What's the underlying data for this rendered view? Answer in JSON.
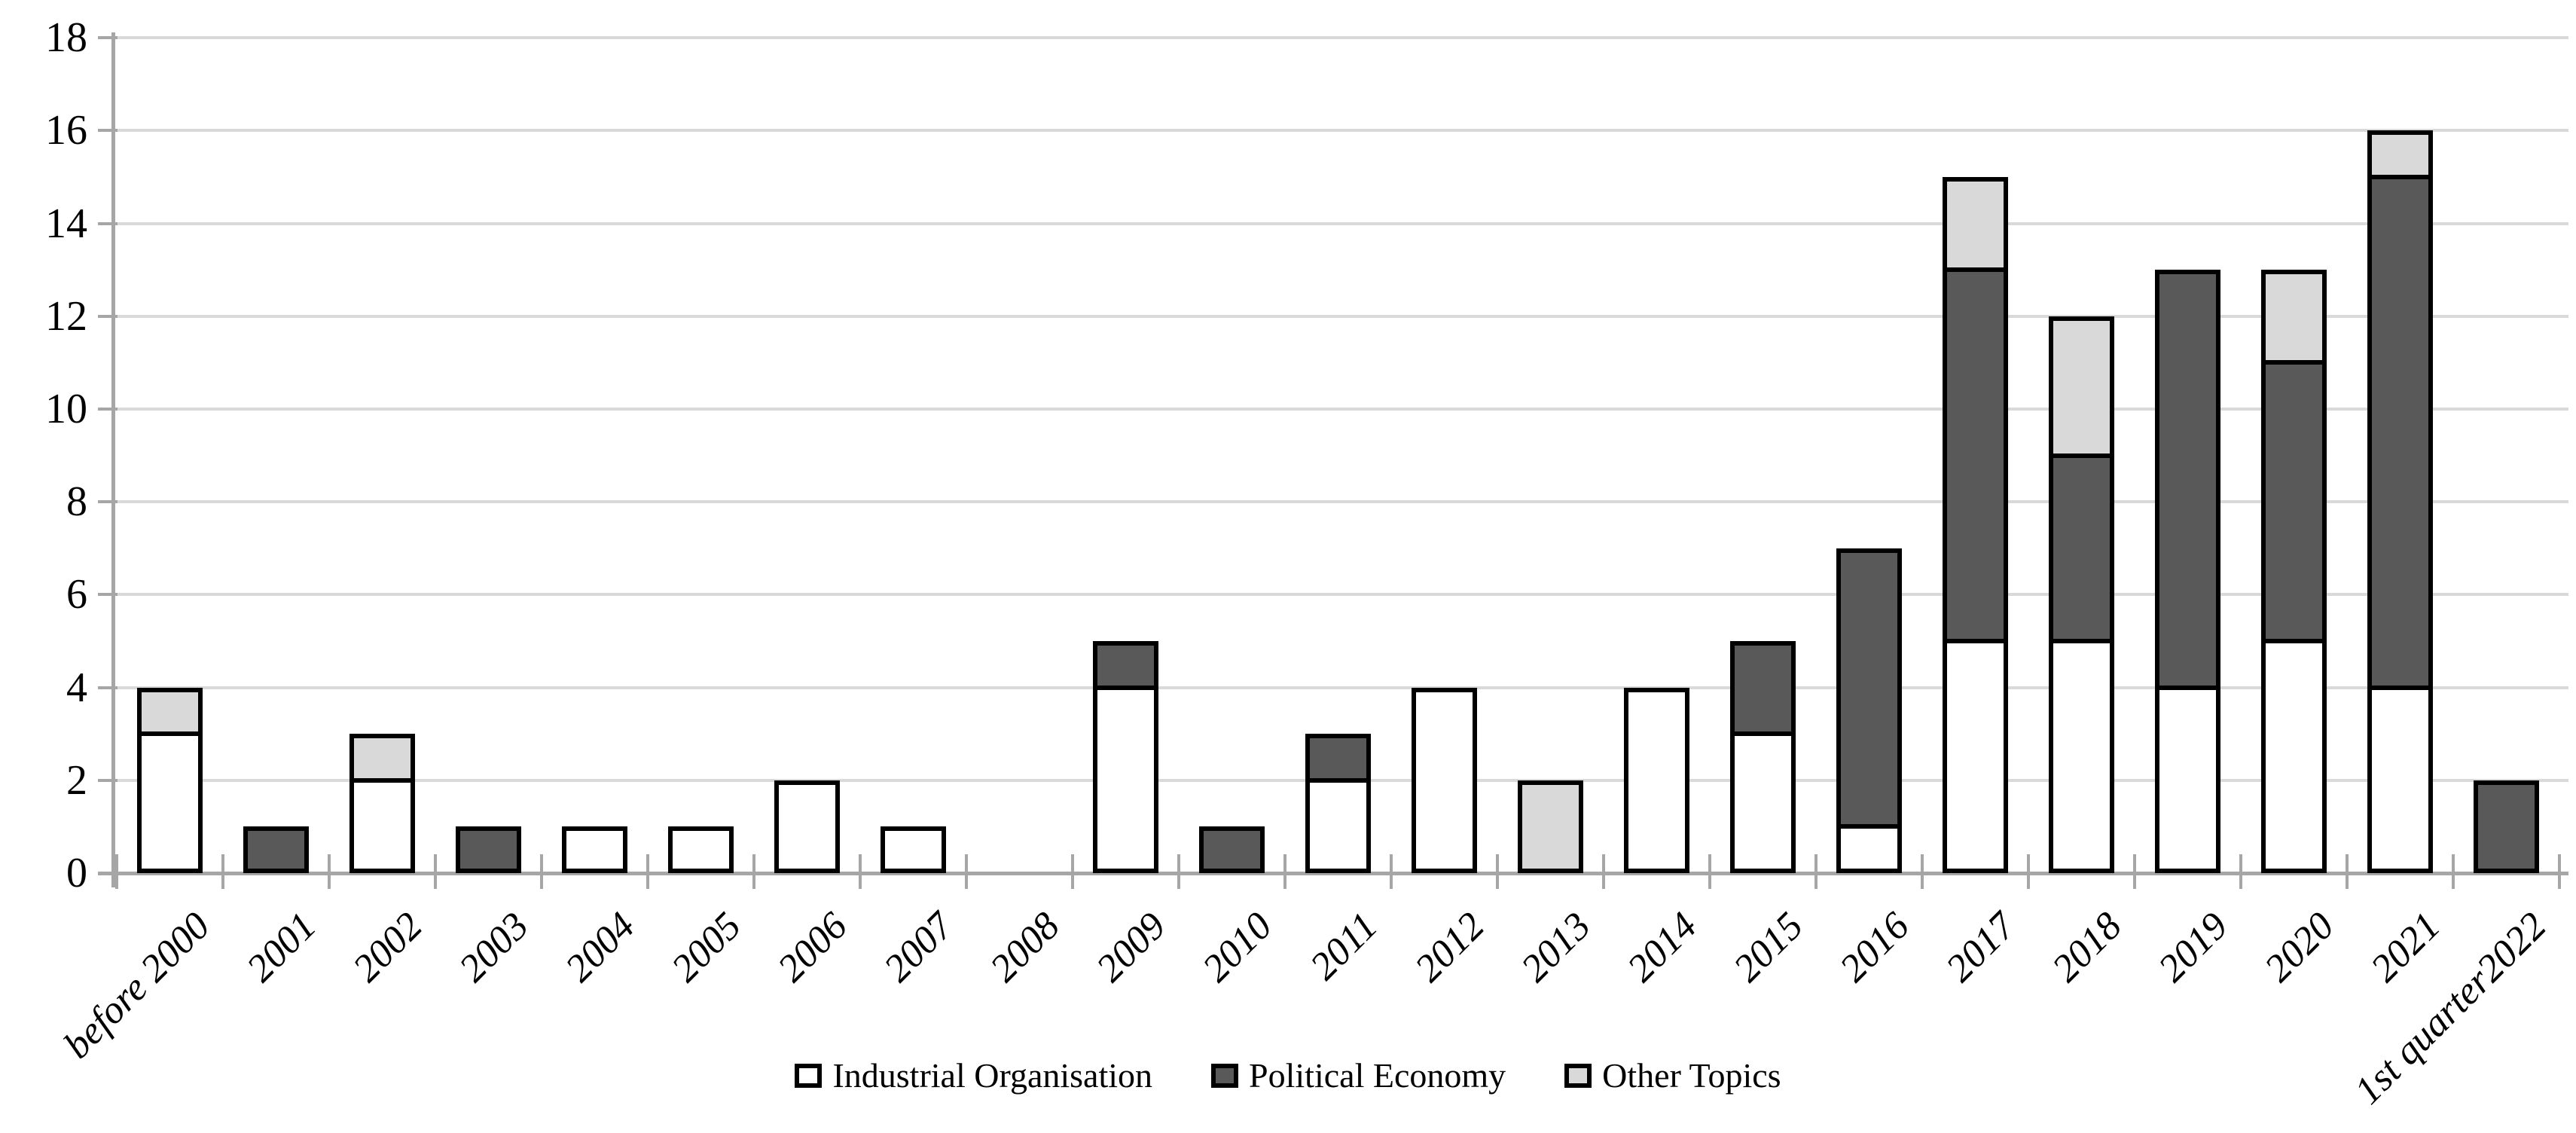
{
  "chart_data": {
    "type": "bar",
    "stacked": true,
    "title": "",
    "xlabel": "",
    "ylabel": "",
    "categories": [
      "before 2000",
      "2001",
      "2002",
      "2003",
      "2004",
      "2005",
      "2006",
      "2007",
      "2008",
      "2009",
      "2010",
      "2011",
      "2012",
      "2013",
      "2014",
      "2015",
      "2016",
      "2017",
      "2018",
      "2019",
      "2020",
      "2021",
      "1st quarter2022"
    ],
    "series": [
      {
        "name": "Industrial Organisation",
        "color": "#ffffff",
        "values": [
          3,
          0,
          2,
          0,
          1,
          1,
          2,
          1,
          0,
          4,
          0,
          2,
          4,
          0,
          4,
          3,
          1,
          5,
          5,
          4,
          5,
          4,
          0
        ]
      },
      {
        "name": "Political Economy",
        "color": "#595959",
        "values": [
          0,
          1,
          0,
          1,
          0,
          0,
          0,
          0,
          0,
          1,
          1,
          1,
          0,
          0,
          0,
          2,
          6,
          8,
          4,
          9,
          6,
          11,
          2
        ]
      },
      {
        "name": "Other Topics",
        "color": "#d9d9d9",
        "values": [
          1,
          0,
          1,
          0,
          0,
          0,
          0,
          0,
          0,
          0,
          0,
          0,
          0,
          2,
          0,
          0,
          0,
          2,
          3,
          0,
          2,
          1,
          0
        ]
      }
    ],
    "ylim": [
      0,
      18
    ],
    "ytick_step": 2,
    "yticks": [
      0,
      2,
      4,
      6,
      8,
      10,
      12,
      14,
      16,
      18
    ],
    "grid": "horizontal",
    "legend_position": "bottom",
    "colors": {
      "axis": "#a6a6a6",
      "gridline": "#d9d9d9",
      "bar_outline": "#000000"
    }
  }
}
